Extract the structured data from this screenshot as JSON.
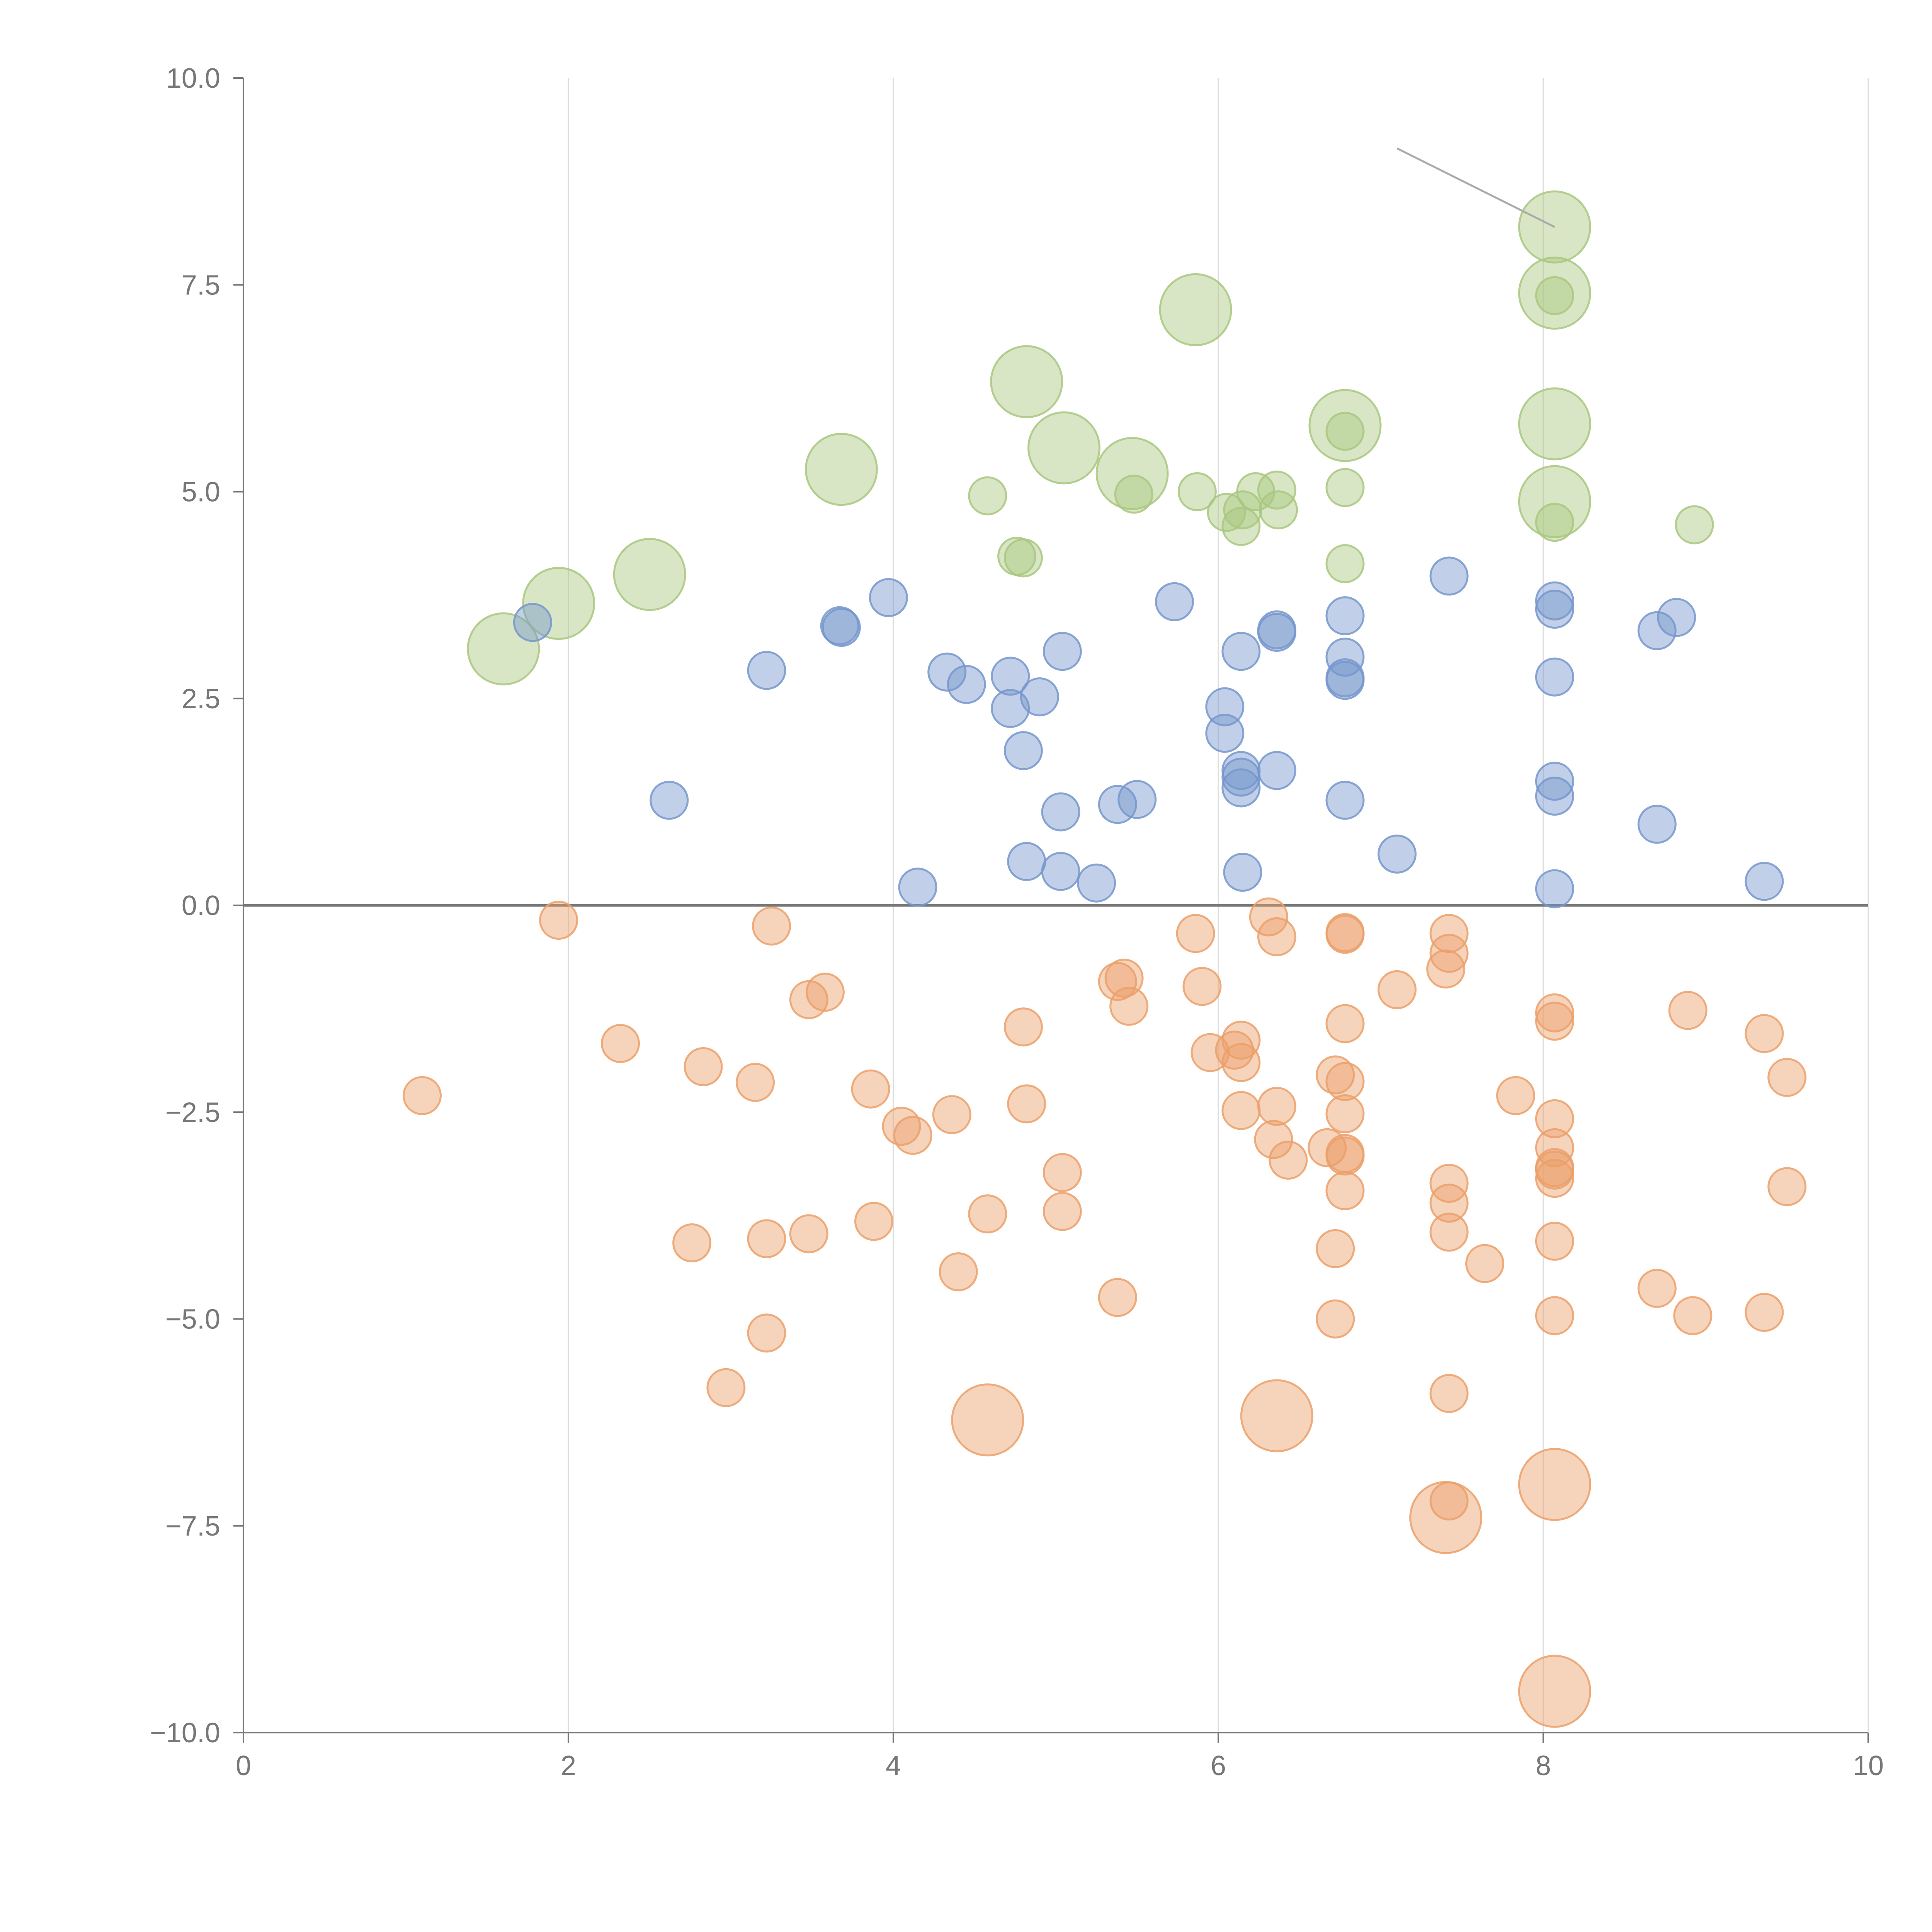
{
  "chart_data": {
    "type": "scatter",
    "title": "",
    "xlabel": "",
    "ylabel": "",
    "xlim": [
      0,
      10
    ],
    "ylim": [
      -10,
      10
    ],
    "x_ticks": [
      0,
      2,
      4,
      6,
      8,
      10
    ],
    "x_tick_labels": [
      "0",
      "2",
      "4",
      "6",
      "8",
      "10"
    ],
    "y_ticks": [
      10,
      7.5,
      5,
      2.5,
      0,
      -2.5,
      -5,
      -7.5,
      -10
    ],
    "y_tick_labels": [
      "10.0",
      "7.5",
      "5.0",
      "2.5",
      "0.0",
      "−2.5",
      "−5.0",
      "−7.5",
      "−10.0"
    ],
    "grid": {
      "vertical": true,
      "horizontal": false
    },
    "zero_line": true,
    "marker_opacity": 0.45,
    "series": [
      {
        "color": "#a9c77f",
        "points": [
          [
            1.6,
            3.1,
            "l"
          ],
          [
            1.94,
            3.65,
            "l"
          ],
          [
            2.5,
            4.0,
            "l"
          ],
          [
            3.68,
            5.27,
            "l"
          ],
          [
            4.58,
            4.95,
            "s"
          ],
          [
            4.76,
            4.22,
            "s"
          ],
          [
            4.8,
            4.2,
            "s"
          ],
          [
            4.82,
            6.33,
            "l"
          ],
          [
            5.05,
            5.53,
            "l"
          ],
          [
            5.47,
            5.22,
            "l"
          ],
          [
            5.48,
            4.97,
            "s"
          ],
          [
            5.86,
            7.2,
            "l"
          ],
          [
            5.87,
            5.0,
            "s"
          ],
          [
            6.05,
            4.75,
            "s"
          ],
          [
            6.14,
            4.58,
            "s"
          ],
          [
            6.15,
            4.78,
            "s"
          ],
          [
            6.23,
            5.0,
            "s"
          ],
          [
            6.36,
            5.02,
            "s"
          ],
          [
            6.37,
            4.78,
            "s"
          ],
          [
            6.78,
            5.8,
            "l"
          ],
          [
            6.78,
            5.73,
            "s"
          ],
          [
            6.78,
            5.05,
            "s"
          ],
          [
            6.78,
            4.13,
            "s"
          ],
          [
            8.07,
            8.2,
            "l"
          ],
          [
            8.07,
            7.4,
            "l"
          ],
          [
            8.07,
            7.37,
            "s"
          ],
          [
            8.07,
            5.82,
            "l"
          ],
          [
            8.07,
            4.88,
            "l"
          ],
          [
            8.07,
            4.63,
            "s"
          ],
          [
            8.93,
            4.6,
            "s"
          ]
        ]
      },
      {
        "color": "#7597cc",
        "points": [
          [
            1.78,
            3.42,
            "s"
          ],
          [
            2.62,
            1.27,
            "s"
          ],
          [
            3.22,
            2.84,
            "s"
          ],
          [
            3.67,
            3.38,
            "s"
          ],
          [
            3.68,
            3.36,
            "s"
          ],
          [
            3.97,
            3.72,
            "s"
          ],
          [
            4.15,
            0.22,
            "s"
          ],
          [
            4.33,
            2.82,
            "s"
          ],
          [
            4.45,
            2.67,
            "s"
          ],
          [
            4.72,
            2.77,
            "s"
          ],
          [
            4.72,
            2.38,
            "s"
          ],
          [
            4.8,
            1.87,
            "s"
          ],
          [
            4.82,
            0.53,
            "s"
          ],
          [
            4.9,
            2.52,
            "s"
          ],
          [
            5.04,
            3.07,
            "s"
          ],
          [
            5.03,
            1.13,
            "s"
          ],
          [
            5.03,
            0.41,
            "s"
          ],
          [
            5.25,
            0.27,
            "s"
          ],
          [
            5.38,
            1.22,
            "s"
          ],
          [
            5.5,
            1.28,
            "s"
          ],
          [
            5.73,
            3.67,
            "s"
          ],
          [
            6.04,
            2.4,
            "s"
          ],
          [
            6.04,
            2.08,
            "s"
          ],
          [
            6.14,
            3.07,
            "s"
          ],
          [
            6.14,
            1.63,
            "s"
          ],
          [
            6.14,
            1.55,
            "s"
          ],
          [
            6.14,
            1.42,
            "s"
          ],
          [
            6.15,
            0.4,
            "s"
          ],
          [
            6.36,
            3.33,
            "s"
          ],
          [
            6.36,
            3.3,
            "s"
          ],
          [
            6.36,
            1.63,
            "s"
          ],
          [
            6.78,
            3.5,
            "s"
          ],
          [
            6.78,
            3.0,
            "s"
          ],
          [
            6.78,
            2.75,
            "s"
          ],
          [
            6.78,
            2.72,
            "s"
          ],
          [
            6.78,
            1.27,
            "s"
          ],
          [
            7.1,
            0.62,
            "s"
          ],
          [
            7.42,
            3.98,
            "s"
          ],
          [
            8.07,
            3.68,
            "s"
          ],
          [
            8.07,
            3.58,
            "s"
          ],
          [
            8.07,
            2.76,
            "s"
          ],
          [
            8.07,
            1.5,
            "s"
          ],
          [
            8.07,
            1.32,
            "s"
          ],
          [
            8.07,
            0.2,
            "s"
          ],
          [
            8.7,
            3.32,
            "s"
          ],
          [
            8.82,
            3.48,
            "s"
          ],
          [
            8.7,
            0.98,
            "s"
          ],
          [
            9.36,
            0.29,
            "s"
          ]
        ]
      },
      {
        "color": "#eba06a",
        "points": [
          [
            1.1,
            -2.3,
            "s"
          ],
          [
            1.94,
            -0.18,
            "s"
          ],
          [
            2.32,
            -1.67,
            "s"
          ],
          [
            2.76,
            -4.08,
            "s"
          ],
          [
            2.83,
            -1.95,
            "s"
          ],
          [
            2.97,
            -5.83,
            "s"
          ],
          [
            3.15,
            -2.14,
            "s"
          ],
          [
            3.22,
            -4.03,
            "s"
          ],
          [
            3.22,
            -5.17,
            "s"
          ],
          [
            3.25,
            -0.25,
            "s"
          ],
          [
            3.48,
            -1.14,
            "s"
          ],
          [
            3.48,
            -3.97,
            "s"
          ],
          [
            3.58,
            -1.05,
            "s"
          ],
          [
            3.86,
            -2.22,
            "s"
          ],
          [
            3.88,
            -3.82,
            "s"
          ],
          [
            4.05,
            -2.67,
            "s"
          ],
          [
            4.12,
            -2.78,
            "s"
          ],
          [
            4.36,
            -2.53,
            "s"
          ],
          [
            4.4,
            -4.43,
            "s"
          ],
          [
            4.58,
            -3.73,
            "s"
          ],
          [
            4.58,
            -6.22,
            "l"
          ],
          [
            4.8,
            -1.47,
            "s"
          ],
          [
            4.82,
            -2.4,
            "s"
          ],
          [
            5.04,
            -3.23,
            "s"
          ],
          [
            5.04,
            -3.7,
            "s"
          ],
          [
            5.38,
            -0.92,
            "s"
          ],
          [
            5.42,
            -0.88,
            "s"
          ],
          [
            5.45,
            -1.22,
            "s"
          ],
          [
            5.38,
            -4.74,
            "s"
          ],
          [
            5.86,
            -0.34,
            "s"
          ],
          [
            5.9,
            -0.98,
            "s"
          ],
          [
            5.95,
            -1.78,
            "s"
          ],
          [
            6.1,
            -1.75,
            "s"
          ],
          [
            6.14,
            -1.63,
            "s"
          ],
          [
            6.14,
            -1.9,
            "s"
          ],
          [
            6.14,
            -2.48,
            "s"
          ],
          [
            6.31,
            -0.14,
            "s"
          ],
          [
            6.36,
            -0.38,
            "s"
          ],
          [
            6.36,
            -2.43,
            "s"
          ],
          [
            6.34,
            -2.83,
            "s"
          ],
          [
            6.43,
            -3.08,
            "s"
          ],
          [
            6.36,
            -6.17,
            "l"
          ],
          [
            6.67,
            -2.93,
            "s"
          ],
          [
            6.72,
            -2.05,
            "s"
          ],
          [
            6.78,
            -2.13,
            "s"
          ],
          [
            6.78,
            -2.52,
            "s"
          ],
          [
            6.78,
            -0.35,
            "s"
          ],
          [
            6.78,
            -0.33,
            "s"
          ],
          [
            6.78,
            -1.43,
            "s"
          ],
          [
            6.78,
            -3.0,
            "s"
          ],
          [
            6.78,
            -3.03,
            "s"
          ],
          [
            6.78,
            -3.45,
            "s"
          ],
          [
            6.72,
            -4.15,
            "s"
          ],
          [
            6.72,
            -5.0,
            "s"
          ],
          [
            7.1,
            -1.02,
            "s"
          ],
          [
            7.4,
            -0.77,
            "s"
          ],
          [
            7.42,
            -0.34,
            "s"
          ],
          [
            7.42,
            -0.58,
            "s"
          ],
          [
            7.42,
            -3.36,
            "s"
          ],
          [
            7.42,
            -3.6,
            "s"
          ],
          [
            7.42,
            -3.95,
            "s"
          ],
          [
            7.42,
            -5.9,
            "s"
          ],
          [
            7.4,
            -7.4,
            "l"
          ],
          [
            7.42,
            -7.2,
            "s"
          ],
          [
            7.64,
            -4.33,
            "s"
          ],
          [
            7.83,
            -2.3,
            "s"
          ],
          [
            8.07,
            -1.3,
            "s"
          ],
          [
            8.07,
            -1.4,
            "s"
          ],
          [
            8.07,
            -2.58,
            "s"
          ],
          [
            8.07,
            -2.93,
            "s"
          ],
          [
            8.07,
            -3.17,
            "s"
          ],
          [
            8.07,
            -3.2,
            "s"
          ],
          [
            8.07,
            -3.3,
            "s"
          ],
          [
            8.07,
            -4.06,
            "s"
          ],
          [
            8.07,
            -4.96,
            "s"
          ],
          [
            8.07,
            -7.0,
            "l"
          ],
          [
            8.07,
            -9.5,
            "l"
          ],
          [
            8.7,
            -4.63,
            "s"
          ],
          [
            8.89,
            -1.27,
            "s"
          ],
          [
            8.92,
            -4.96,
            "s"
          ],
          [
            9.36,
            -1.55,
            "s"
          ],
          [
            9.36,
            -4.92,
            "s"
          ],
          [
            9.5,
            -2.08,
            "s"
          ],
          [
            9.5,
            -3.4,
            "s"
          ]
        ]
      }
    ],
    "annotation_lines": [
      {
        "x1": 7.1,
        "y1": 9.15,
        "x2": 8.07,
        "y2": 8.2,
        "color": "#aaaaaa"
      }
    ]
  }
}
